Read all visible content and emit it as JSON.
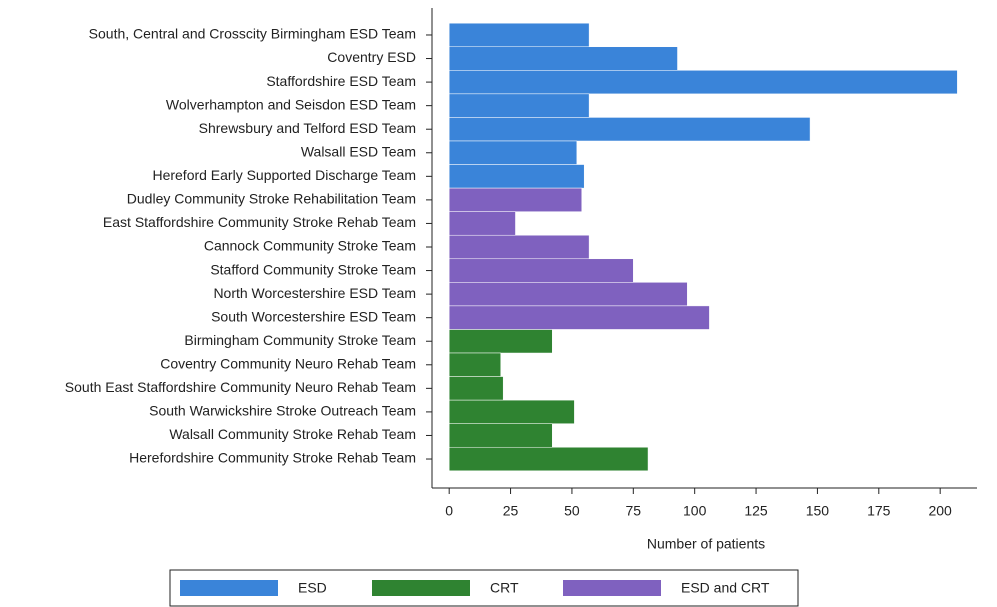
{
  "chart_data": {
    "type": "bar",
    "orientation": "horizontal",
    "x_label": "Number of patients",
    "categories": [
      "South, Central and Crosscity Birmingham ESD Team",
      "Coventry ESD",
      "Staffordshire ESD Team",
      "Wolverhampton and Seisdon ESD Team",
      "Shrewsbury and Telford ESD Team",
      "Walsall ESD Team",
      "Hereford Early Supported Discharge Team",
      "Dudley Community Stroke Rehabilitation Team",
      "East Staffordshire Community Stroke Rehab Team",
      "Cannock Community Stroke Team",
      "Stafford Community Stroke Team",
      "North Worcestershire ESD Team",
      "South Worcestershire ESD Team",
      "Birmingham Community Stroke Team",
      "Coventry Community Neuro Rehab Team",
      "South East Staffordshire Community Neuro Rehab Team",
      "South Warwickshire Stroke Outreach Team",
      "Walsall Community Stroke Rehab Team",
      "Herefordshire Community Stroke Rehab Team"
    ],
    "series": [
      {
        "name": "ESD",
        "color": "#3a84d9",
        "values": [
          57,
          93,
          207,
          57,
          147,
          52,
          55,
          null,
          null,
          null,
          null,
          null,
          null,
          null,
          null,
          null,
          null,
          null,
          null
        ]
      },
      {
        "name": "CRT",
        "color": "#2f8331",
        "values": [
          null,
          null,
          null,
          null,
          null,
          null,
          null,
          null,
          null,
          null,
          null,
          null,
          null,
          42,
          21,
          22,
          51,
          42,
          81
        ]
      },
      {
        "name": "ESD and CRT",
        "color": "#7f61bf",
        "values": [
          null,
          null,
          null,
          null,
          null,
          null,
          null,
          54,
          27,
          57,
          75,
          97,
          106,
          null,
          null,
          null,
          null,
          null,
          null
        ]
      }
    ],
    "xlim": [
      -7,
      215
    ],
    "xticks": [
      0,
      25,
      50,
      75,
      100,
      125,
      150,
      175,
      200
    ],
    "legend": "bottom"
  }
}
